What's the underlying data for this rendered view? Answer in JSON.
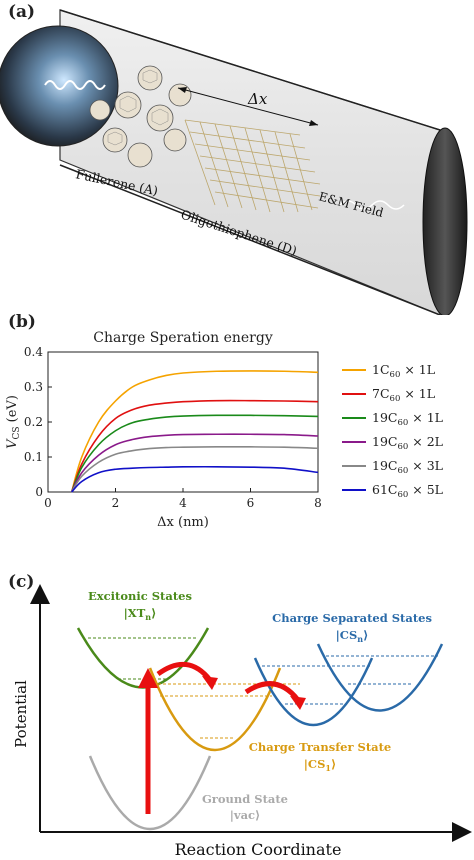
{
  "panel_a": {
    "label": "(a)",
    "fullerene_label": "Fullerene (A)",
    "oligothiophene_label": "Oligothiophene (D)",
    "field_label": "E&M Field",
    "dx_label": "Δx"
  },
  "panel_b": {
    "label": "(b)"
  },
  "chart_data": {
    "type": "line",
    "title": "Charge Speration energy",
    "xlabel": "Δx (nm)",
    "ylabel": "V_CS (eV)",
    "ylabel_main": "V",
    "ylabel_sub": "CS",
    "ylabel_unit": " (eV)",
    "xlim": [
      0,
      8
    ],
    "ylim": [
      0,
      0.4
    ],
    "xticks": [
      "0",
      "2",
      "4",
      "6",
      "8"
    ],
    "yticks": [
      "0",
      "0.1",
      "0.2",
      "0.3",
      "0.4"
    ],
    "grid": false,
    "legend": "right",
    "x": [
      0.7,
      1.0,
      1.5,
      2.0,
      2.5,
      3.0,
      3.5,
      4.0,
      5.0,
      6.0,
      7.0,
      8.0
    ],
    "series": [
      {
        "name": "1C60 × 1L",
        "base": "1C",
        "sub": "60",
        "suffix": " × 1L",
        "color": "#f5a300",
        "values": [
          0.0,
          0.1,
          0.2,
          0.26,
          0.3,
          0.32,
          0.333,
          0.34,
          0.345,
          0.346,
          0.345,
          0.342
        ]
      },
      {
        "name": "7C60 × 1L",
        "base": "7C",
        "sub": "60",
        "suffix": " × 1L",
        "color": "#e01010",
        "values": [
          0.0,
          0.08,
          0.16,
          0.21,
          0.235,
          0.248,
          0.254,
          0.258,
          0.261,
          0.261,
          0.26,
          0.258
        ]
      },
      {
        "name": "19C60 × 1L",
        "base": "19C",
        "sub": "60",
        "suffix": " × 1L",
        "color": "#1a8a1a",
        "values": [
          0.0,
          0.07,
          0.135,
          0.175,
          0.198,
          0.208,
          0.214,
          0.217,
          0.219,
          0.219,
          0.218,
          0.216
        ]
      },
      {
        "name": "19C60 × 2L",
        "base": "19C",
        "sub": "60",
        "suffix": " × 2L",
        "color": "#8a1a8a",
        "values": [
          0.0,
          0.055,
          0.105,
          0.135,
          0.15,
          0.158,
          0.162,
          0.164,
          0.165,
          0.165,
          0.164,
          0.16
        ]
      },
      {
        "name": "19C60 × 3L",
        "base": "19C",
        "sub": "60",
        "suffix": " × 3L",
        "color": "#888888",
        "values": [
          0.0,
          0.045,
          0.085,
          0.108,
          0.118,
          0.124,
          0.127,
          0.128,
          0.129,
          0.129,
          0.128,
          0.125
        ]
      },
      {
        "name": "61C60 × 5L",
        "base": "61C",
        "sub": "60",
        "suffix": " × 5L",
        "color": "#1010c8",
        "values": [
          0.0,
          0.03,
          0.055,
          0.065,
          0.068,
          0.07,
          0.071,
          0.072,
          0.072,
          0.071,
          0.068,
          0.056
        ]
      }
    ]
  },
  "panel_c": {
    "label": "(c)",
    "y_axis": "Potential",
    "x_axis": "Reaction Coordinate",
    "excitonic_title": "Excitonic States",
    "excitonic_ket": "|XT",
    "excitonic_sub": "n",
    "cs_title": "Charge Separated States",
    "cs_ket": "|CS",
    "cs_sub": "n",
    "ct_title": "Charge Transfer State",
    "ct_ket": "|CS",
    "ct_sub": "1",
    "gs_title": "Ground State",
    "gs_ket": "|vac⟩",
    "ket_close": "⟩",
    "colors": {
      "excitonic": "#4a8a1a",
      "cs": "#2a6aa8",
      "ct": "#d89a10",
      "gs": "#aaaaaa",
      "arrow": "#e81010"
    }
  }
}
